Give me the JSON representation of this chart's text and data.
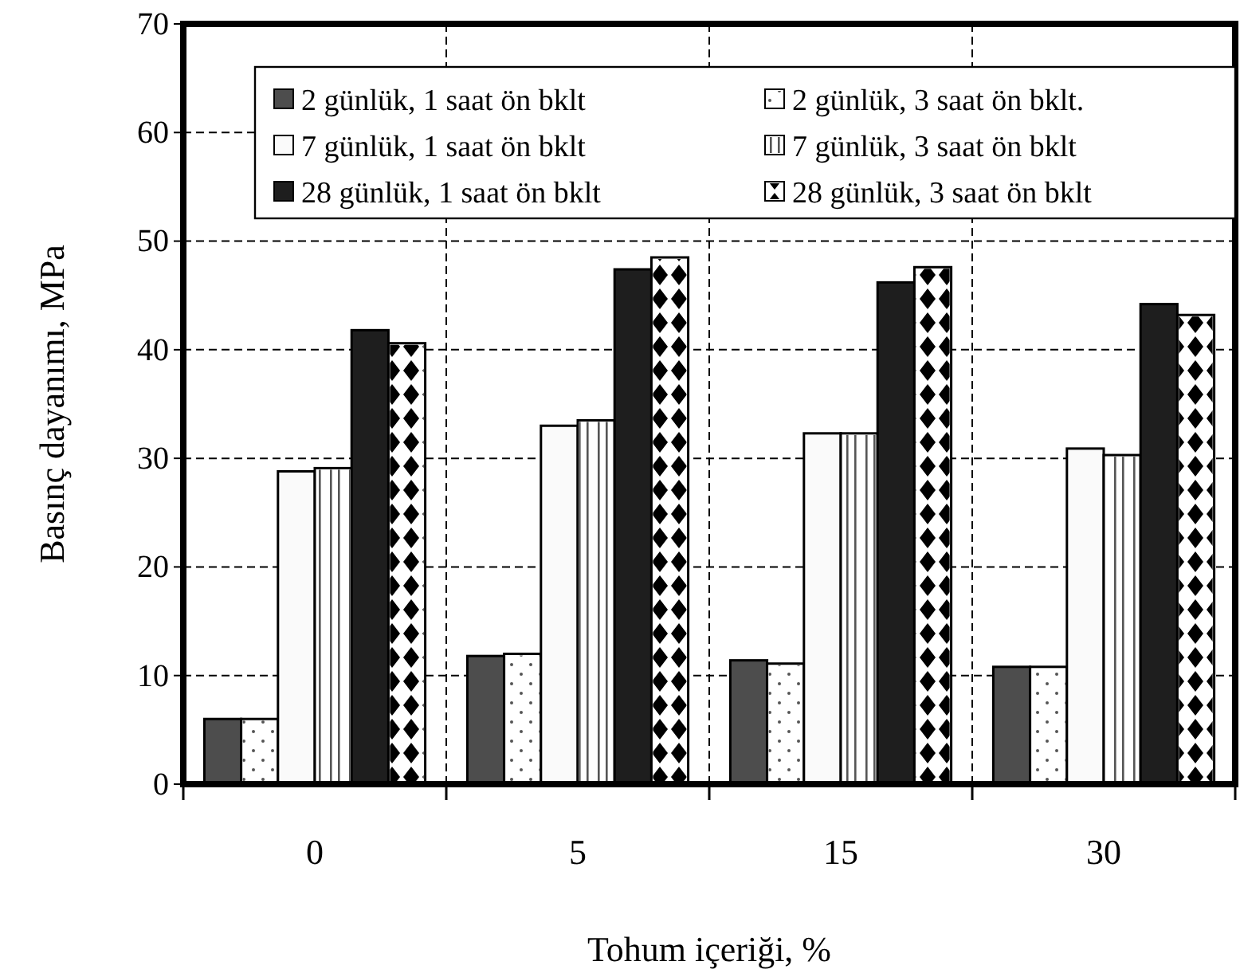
{
  "chart_data": {
    "type": "bar",
    "xlabel": "Tohum içeriği, %",
    "ylabel": "Basınç dayanımı, MPa",
    "categories": [
      "0",
      "5",
      "15",
      "30"
    ],
    "series": [
      {
        "name": "2 günlük, 1 saat ön bklt",
        "color": "#4d4d4d",
        "values": [
          6.0,
          11.8,
          11.4,
          10.8
        ]
      },
      {
        "name": "2 günlük, 3 saat ön bklt.",
        "color": "#ffffff",
        "values": [
          6.0,
          12.0,
          11.1,
          10.8
        ]
      },
      {
        "name": "7 günlük, 1 saat ön bklt",
        "color": "#fafafa",
        "values": [
          28.8,
          33.0,
          32.3,
          30.9
        ]
      },
      {
        "name": "7 günlük, 3 saat ön bklt",
        "color": "#ffffff",
        "values": [
          29.1,
          33.5,
          32.3,
          30.3
        ]
      },
      {
        "name": "28 günlük, 1 saat ön bklt",
        "color": "#1e1e1e",
        "values": [
          41.8,
          47.4,
          46.2,
          44.2
        ]
      },
      {
        "name": "28 günlük, 3 saat ön bklt",
        "color": "#ffffff",
        "values": [
          40.6,
          48.5,
          47.6,
          43.2
        ]
      }
    ],
    "ylim": [
      0,
      70
    ],
    "yticks": [
      0,
      10,
      20,
      30,
      40,
      50,
      60,
      70
    ],
    "grid": true,
    "legend": "top"
  }
}
